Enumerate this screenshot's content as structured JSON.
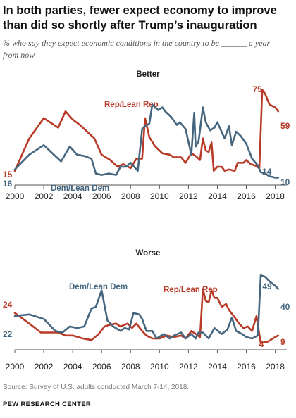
{
  "title": "In both parties, fewer expect economy to improve than did so shortly after Trump’s inauguration",
  "subtitle": "% who say they expect economic conditions in the country to be ______ a year from now",
  "source": "Source: Survey of U.S. adults conducted March 7-14, 2018.",
  "credit": "PEW RESEARCH CENTER",
  "colors": {
    "rep": "#b83a27",
    "dem": "#45667e",
    "axis": "#555555"
  },
  "chart_data": [
    {
      "type": "line",
      "title": "Better",
      "x_ticks": [
        "2000",
        "2002",
        "2004",
        "2006",
        "2008",
        "2010",
        "2012",
        "2014",
        "2016",
        "2018"
      ],
      "xlim": [
        2000,
        2018.8
      ],
      "ylim": [
        5,
        80
      ],
      "grid": false,
      "series": [
        {
          "name": "Rep/Lean Rep",
          "color": "#b83a27",
          "start_label": "15",
          "end_label": "59",
          "peak_label": "75",
          "points": [
            [
              2000.0,
              15
            ],
            [
              2001.0,
              39
            ],
            [
              2002.0,
              54
            ],
            [
              2003.0,
              47
            ],
            [
              2003.5,
              59
            ],
            [
              2004.0,
              53
            ],
            [
              2004.5,
              49
            ],
            [
              2005.5,
              39
            ],
            [
              2006.0,
              27
            ],
            [
              2006.6,
              23
            ],
            [
              2007.1,
              18
            ],
            [
              2007.5,
              20
            ],
            [
              2008.0,
              17
            ],
            [
              2008.4,
              24
            ],
            [
              2008.8,
              24
            ],
            [
              2009.0,
              54
            ],
            [
              2009.3,
              40
            ],
            [
              2009.7,
              33
            ],
            [
              2010.2,
              28
            ],
            [
              2010.7,
              27
            ],
            [
              2011.0,
              25
            ],
            [
              2011.5,
              25
            ],
            [
              2011.8,
              21
            ],
            [
              2012.2,
              28
            ],
            [
              2012.5,
              26
            ],
            [
              2012.8,
              23
            ],
            [
              2013.0,
              39
            ],
            [
              2013.2,
              30
            ],
            [
              2013.4,
              29
            ],
            [
              2013.6,
              36
            ],
            [
              2013.75,
              15
            ],
            [
              2014.0,
              18
            ],
            [
              2014.3,
              18
            ],
            [
              2014.5,
              15
            ],
            [
              2014.8,
              16
            ],
            [
              2015.2,
              15
            ],
            [
              2015.4,
              21
            ],
            [
              2015.8,
              21
            ],
            [
              2016.0,
              23
            ],
            [
              2016.3,
              20
            ],
            [
              2016.6,
              19
            ],
            [
              2016.9,
              17
            ],
            [
              2017.1,
              75
            ],
            [
              2017.3,
              72
            ],
            [
              2017.6,
              64
            ],
            [
              2018.0,
              62
            ],
            [
              2018.2,
              59
            ]
          ]
        },
        {
          "name": "Dem/Lean Dem",
          "color": "#45667e",
          "start_label": "16",
          "end_label": "10",
          "mid_label": "14",
          "points": [
            [
              2000.0,
              16
            ],
            [
              2001.0,
              27
            ],
            [
              2002.0,
              34
            ],
            [
              2002.7,
              27
            ],
            [
              2003.2,
              22
            ],
            [
              2003.8,
              33
            ],
            [
              2004.3,
              27
            ],
            [
              2004.8,
              26
            ],
            [
              2005.3,
              24
            ],
            [
              2005.6,
              13
            ],
            [
              2006.0,
              12
            ],
            [
              2006.5,
              13
            ],
            [
              2007.0,
              12
            ],
            [
              2007.3,
              18
            ],
            [
              2007.7,
              18
            ],
            [
              2008.0,
              21
            ],
            [
              2008.5,
              15
            ],
            [
              2008.8,
              46
            ],
            [
              2009.0,
              48
            ],
            [
              2009.3,
              50
            ],
            [
              2009.5,
              64
            ],
            [
              2009.9,
              60
            ],
            [
              2010.2,
              62
            ],
            [
              2010.4,
              59
            ],
            [
              2010.8,
              55
            ],
            [
              2011.2,
              49
            ],
            [
              2011.4,
              51
            ],
            [
              2011.8,
              46
            ],
            [
              2012.2,
              27
            ],
            [
              2012.4,
              58
            ],
            [
              2012.5,
              33
            ],
            [
              2012.7,
              37
            ],
            [
              2013.0,
              62
            ],
            [
              2013.2,
              51
            ],
            [
              2013.5,
              45
            ],
            [
              2013.8,
              47
            ],
            [
              2014.0,
              51
            ],
            [
              2014.5,
              39
            ],
            [
              2014.8,
              48
            ],
            [
              2015.0,
              34
            ],
            [
              2015.3,
              44
            ],
            [
              2015.6,
              41
            ],
            [
              2016.0,
              35
            ],
            [
              2016.4,
              24
            ],
            [
              2016.8,
              19
            ],
            [
              2017.0,
              14
            ],
            [
              2017.3,
              13
            ],
            [
              2017.6,
              11
            ],
            [
              2018.0,
              10
            ],
            [
              2018.2,
              10
            ]
          ]
        }
      ]
    },
    {
      "type": "line",
      "title": "Worse",
      "x_ticks": [
        "2000",
        "2002",
        "2004",
        "2006",
        "2008",
        "2010",
        "2012",
        "2014",
        "2016",
        "2018"
      ],
      "xlim": [
        2000,
        2018.8
      ],
      "ylim": [
        0,
        58
      ],
      "grid": false,
      "series": [
        {
          "name": "Rep/Lean Rep",
          "color": "#b83a27",
          "start_label": "24",
          "end_label": "9",
          "mid_label": "4",
          "points": [
            [
              2000.0,
              24
            ],
            [
              2001.0,
              17
            ],
            [
              2001.8,
              11
            ],
            [
              2003.0,
              11
            ],
            [
              2003.5,
              9
            ],
            [
              2004.0,
              9
            ],
            [
              2004.7,
              7
            ],
            [
              2005.3,
              6
            ],
            [
              2005.8,
              10
            ],
            [
              2006.2,
              15
            ],
            [
              2006.5,
              16
            ],
            [
              2007.0,
              17
            ],
            [
              2007.3,
              15
            ],
            [
              2007.8,
              17
            ],
            [
              2008.1,
              14
            ],
            [
              2008.4,
              17
            ],
            [
              2008.8,
              12
            ],
            [
              2009.1,
              9
            ],
            [
              2009.5,
              7
            ],
            [
              2010.0,
              7
            ],
            [
              2010.5,
              9
            ],
            [
              2011.0,
              8
            ],
            [
              2011.5,
              9
            ],
            [
              2011.8,
              7
            ],
            [
              2012.2,
              12
            ],
            [
              2012.5,
              10
            ],
            [
              2012.8,
              8
            ],
            [
              2013.0,
              40
            ],
            [
              2013.2,
              32
            ],
            [
              2013.4,
              31
            ],
            [
              2013.6,
              39
            ],
            [
              2013.8,
              34
            ],
            [
              2014.0,
              34
            ],
            [
              2014.3,
              28
            ],
            [
              2014.6,
              30
            ],
            [
              2014.8,
              26
            ],
            [
              2015.2,
              21
            ],
            [
              2015.5,
              17
            ],
            [
              2015.8,
              14
            ],
            [
              2016.1,
              15
            ],
            [
              2016.4,
              12
            ],
            [
              2016.7,
              22
            ],
            [
              2017.0,
              4
            ],
            [
              2017.5,
              5
            ],
            [
              2018.0,
              8
            ],
            [
              2018.2,
              9
            ]
          ]
        },
        {
          "name": "Dem/Lean Dem",
          "color": "#45667e",
          "start_label": "22",
          "end_label": "40",
          "peak_label": "49",
          "points": [
            [
              2000.0,
              22
            ],
            [
              2001.0,
              23
            ],
            [
              2002.0,
              20
            ],
            [
              2002.8,
              12
            ],
            [
              2003.3,
              11
            ],
            [
              2003.8,
              15
            ],
            [
              2004.3,
              14
            ],
            [
              2004.8,
              15
            ],
            [
              2005.3,
              27
            ],
            [
              2005.6,
              28
            ],
            [
              2006.0,
              39
            ],
            [
              2006.4,
              19
            ],
            [
              2006.8,
              15
            ],
            [
              2007.3,
              12
            ],
            [
              2007.6,
              14
            ],
            [
              2007.9,
              13
            ],
            [
              2008.2,
              24
            ],
            [
              2008.6,
              23
            ],
            [
              2008.8,
              20
            ],
            [
              2009.1,
              12
            ],
            [
              2009.5,
              12
            ],
            [
              2009.8,
              7
            ],
            [
              2010.3,
              10
            ],
            [
              2010.7,
              7
            ],
            [
              2011.0,
              9
            ],
            [
              2011.5,
              11
            ],
            [
              2011.8,
              7
            ],
            [
              2012.2,
              10
            ],
            [
              2012.5,
              7
            ],
            [
              2012.7,
              11
            ],
            [
              2013.0,
              11
            ],
            [
              2013.4,
              7
            ],
            [
              2013.8,
              14
            ],
            [
              2014.3,
              10
            ],
            [
              2014.7,
              13
            ],
            [
              2015.0,
              21
            ],
            [
              2015.3,
              12
            ],
            [
              2015.7,
              10
            ],
            [
              2016.0,
              8
            ],
            [
              2016.4,
              7
            ],
            [
              2016.8,
              9
            ],
            [
              2017.0,
              49
            ],
            [
              2017.3,
              48
            ],
            [
              2017.6,
              45
            ],
            [
              2018.0,
              42
            ],
            [
              2018.2,
              40
            ]
          ]
        }
      ]
    }
  ]
}
